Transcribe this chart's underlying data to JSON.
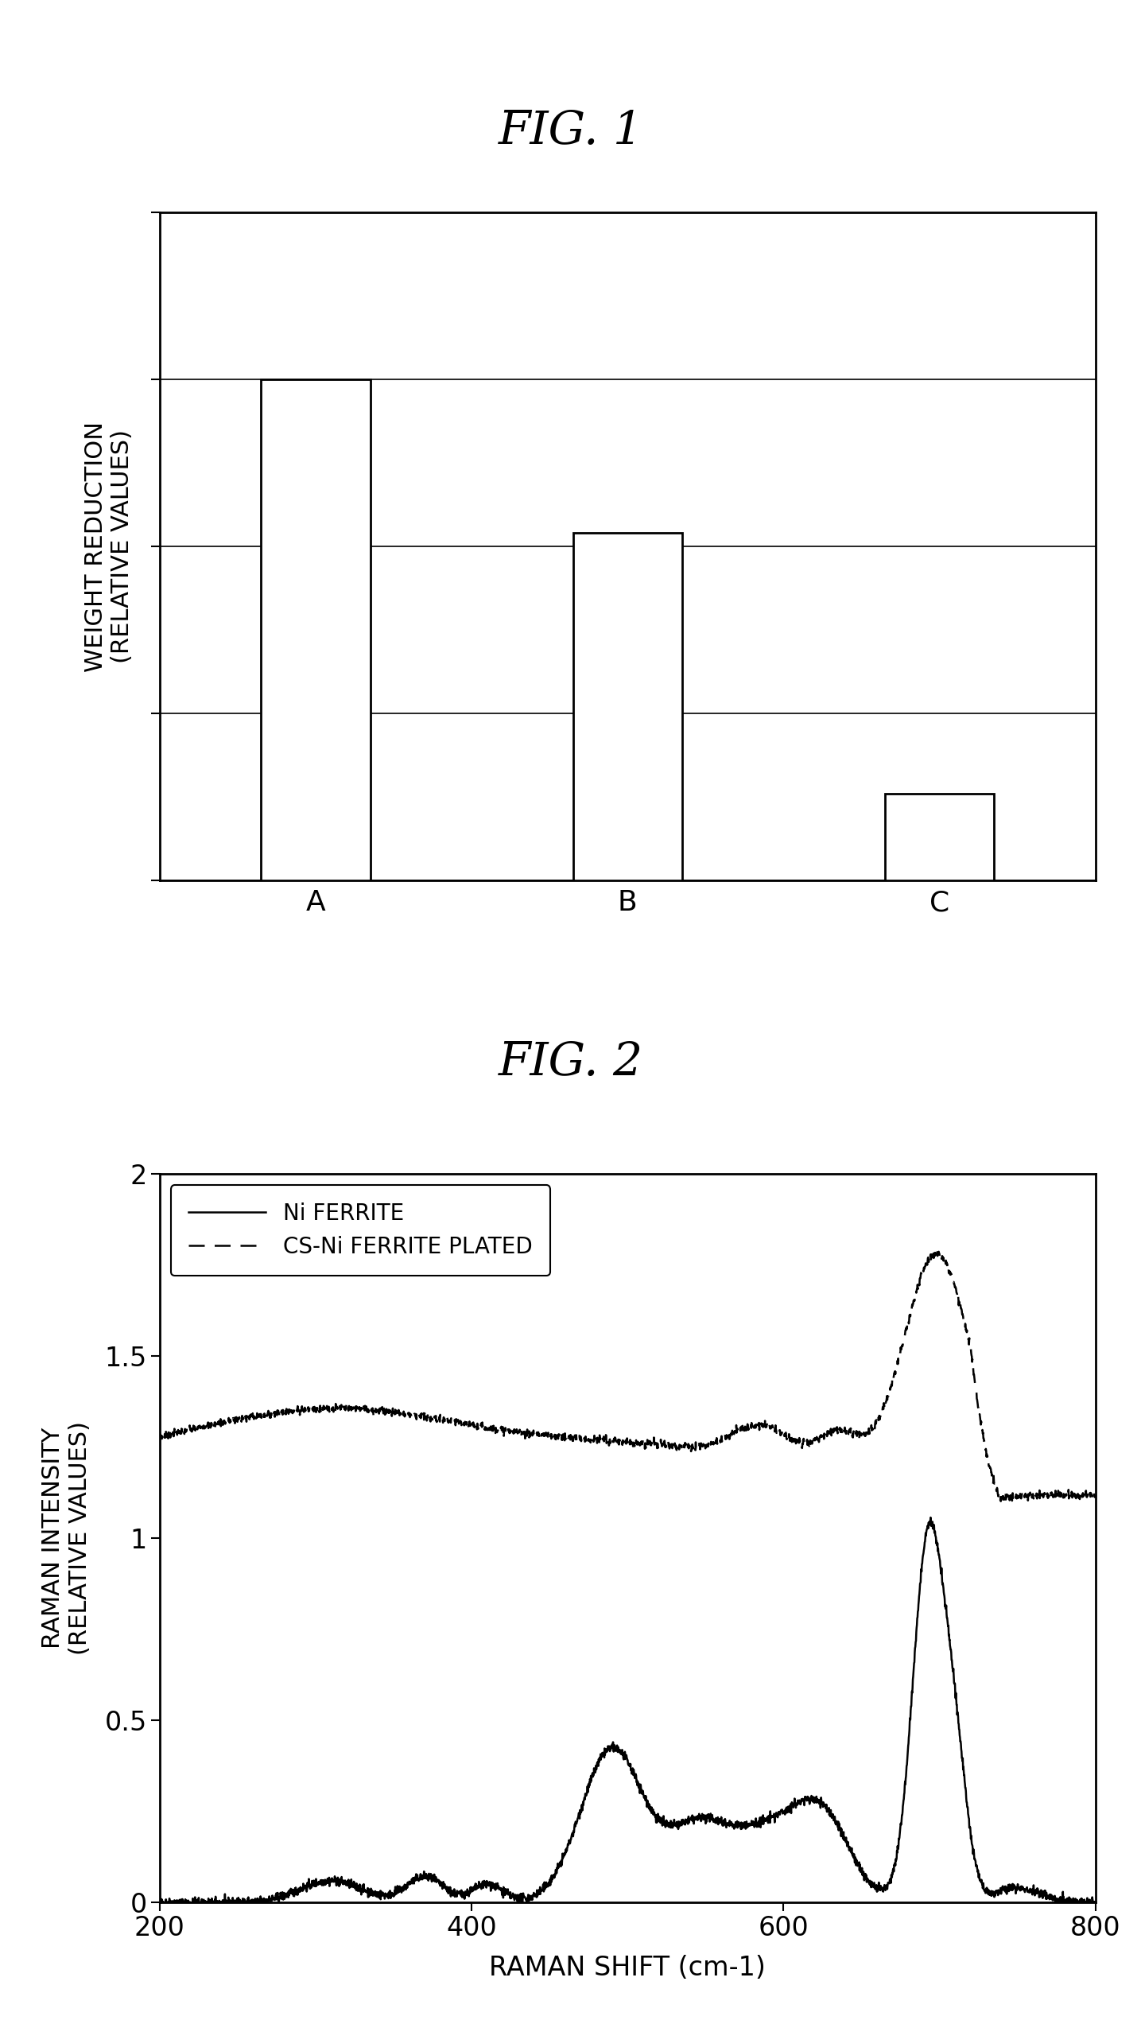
{
  "fig1": {
    "title": "FIG. 1",
    "categories": [
      "A",
      "B",
      "C"
    ],
    "values": [
      0.75,
      0.52,
      0.13
    ],
    "ylim": [
      0,
      1.0
    ],
    "ytick_positions": [
      0.0,
      0.25,
      0.5,
      0.75,
      1.0
    ],
    "ylabel_line1": "WEIGHT REDUCTION",
    "ylabel_line2": "(RELATIVE VALUES)",
    "bar_color": "#ffffff",
    "bar_edgecolor": "#000000",
    "bar_linewidth": 2.0,
    "bar_width": 0.35
  },
  "fig2": {
    "title": "FIG. 2",
    "xlabel": "RAMAN SHIFT (cm-1)",
    "ylabel_line1": "RAMAN INTENSITY",
    "ylabel_line2": "(RELATIVE VALUES)",
    "xlim": [
      200,
      800
    ],
    "ylim": [
      0,
      2.0
    ],
    "yticks": [
      0,
      0.5,
      1.0,
      1.5,
      2.0
    ],
    "xticks": [
      200,
      400,
      600,
      800
    ],
    "legend_solid": "Ni FERRITE",
    "legend_dashed": "CS-Ni FERRITE PLATED",
    "line_color": "#000000"
  },
  "background_color": "#ffffff"
}
